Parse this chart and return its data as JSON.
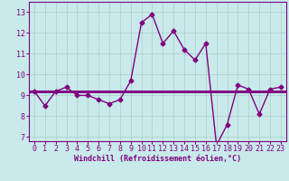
{
  "xlabel": "Windchill (Refroidissement éolien,°C)",
  "background_color": "#c8eaea",
  "line_color": "#800080",
  "x_values": [
    0,
    1,
    2,
    3,
    4,
    5,
    6,
    7,
    8,
    9,
    10,
    11,
    12,
    13,
    14,
    15,
    16,
    17,
    18,
    19,
    20,
    21,
    22,
    23
  ],
  "y_values": [
    9.2,
    8.5,
    9.2,
    9.4,
    9.0,
    9.0,
    8.8,
    8.6,
    8.8,
    9.7,
    12.5,
    12.9,
    11.5,
    12.1,
    11.2,
    10.7,
    11.5,
    6.6,
    7.6,
    9.5,
    9.3,
    8.1,
    9.3,
    9.4
  ],
  "hlines": [
    9.2,
    9.15,
    9.25
  ],
  "xlim": [
    -0.5,
    23.5
  ],
  "ylim": [
    6.8,
    13.5
  ],
  "yticks": [
    7,
    8,
    9,
    10,
    11,
    12,
    13
  ],
  "xticks": [
    0,
    1,
    2,
    3,
    4,
    5,
    6,
    7,
    8,
    9,
    10,
    11,
    12,
    13,
    14,
    15,
    16,
    17,
    18,
    19,
    20,
    21,
    22,
    23
  ],
  "grid_color": "#aacccc",
  "marker": "D",
  "marker_size": 2.5,
  "line_width": 1.0,
  "tick_fontsize": 6.0,
  "xlabel_fontsize": 6.0
}
